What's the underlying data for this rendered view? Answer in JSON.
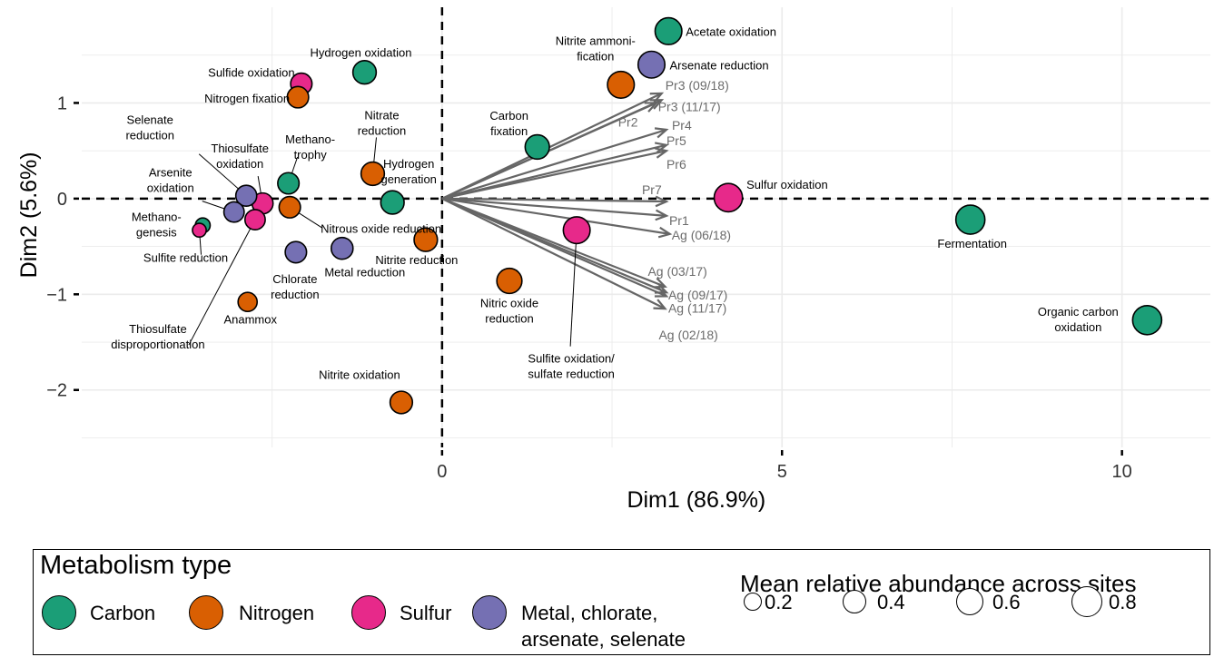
{
  "chart_data": {
    "type": "scatter",
    "xlabel": "Dim1 (86.9%)",
    "ylabel": "Dim2 (5.6%)",
    "xlim": [
      -5.3,
      11.3
    ],
    "ylim": [
      -2.6,
      2.0
    ],
    "x_ticks": [
      0,
      5,
      10
    ],
    "y_ticks": [
      -2,
      -1,
      0,
      1
    ],
    "x_tick_labels": [
      "0",
      "5",
      "10"
    ],
    "y_tick_labels": [
      "−2",
      "−1",
      "0",
      "1"
    ],
    "grid": true,
    "reference_lines": {
      "x": 0,
      "y": 0,
      "style": "dashed"
    },
    "colors": {
      "Carbon": "#1b9e77",
      "Nitrogen": "#d95f02",
      "Sulfur": "#e7298a",
      "Metal, chlorate, arsenate, selenate": "#7570b3"
    },
    "points": [
      {
        "label": "Acetate oxidation",
        "x": 3.33,
        "y": 1.75,
        "type": "Carbon",
        "abundance": 0.7
      },
      {
        "label": "Arsenate reduction",
        "x": 3.08,
        "y": 1.4,
        "type": "Metal, chlorate, arsenate, selenate",
        "abundance": 0.7
      },
      {
        "label": "Nitrite ammoni-\nfication",
        "x": 2.63,
        "y": 1.19,
        "type": "Nitrogen",
        "abundance": 0.7
      },
      {
        "label": "Carbon\nfixation",
        "x": 1.4,
        "y": 0.54,
        "type": "Carbon",
        "abundance": 0.55
      },
      {
        "label": "Sulfur oxidation",
        "x": 4.21,
        "y": 0.01,
        "type": "Sulfur",
        "abundance": 0.8
      },
      {
        "label": "Fermentation",
        "x": 7.77,
        "y": -0.22,
        "type": "Carbon",
        "abundance": 0.85
      },
      {
        "label": "Organic carbon\noxidation",
        "x": 10.37,
        "y": -1.27,
        "type": "Carbon",
        "abundance": 0.85
      },
      {
        "label": "Sulfite oxidation/\nsulfate reduction",
        "x": 1.98,
        "y": -0.33,
        "type": "Sulfur",
        "abundance": 0.7
      },
      {
        "label": "Nitric oxide\nreduction",
        "x": 0.99,
        "y": -0.86,
        "type": "Nitrogen",
        "abundance": 0.6
      },
      {
        "label": "Nitrite reduction",
        "x": -0.24,
        "y": -0.43,
        "type": "Nitrogen",
        "abundance": 0.5
      },
      {
        "label": "Hydrogen\ngeneration",
        "x": -0.73,
        "y": -0.04,
        "type": "Carbon",
        "abundance": 0.5
      },
      {
        "label": "Nitrate\nreduction",
        "x": -1.02,
        "y": 0.26,
        "type": "Nitrogen",
        "abundance": 0.5
      },
      {
        "label": "Hydrogen oxidation",
        "x": -1.14,
        "y": 1.32,
        "type": "Carbon",
        "abundance": 0.5
      },
      {
        "label": "Sulfide oxidation",
        "x": -2.07,
        "y": 1.2,
        "type": "Sulfur",
        "abundance": 0.4
      },
      {
        "label": "Nitrogen fixation",
        "x": -2.12,
        "y": 1.06,
        "type": "Nitrogen",
        "abundance": 0.4
      },
      {
        "label": "Methano-\ntrophy",
        "x": -2.26,
        "y": 0.16,
        "type": "Carbon",
        "abundance": 0.4
      },
      {
        "label": "Nitrous oxide reduction",
        "x": -2.24,
        "y": -0.09,
        "type": "Nitrogen",
        "abundance": 0.4
      },
      {
        "label": "Thiosulfate\noxidation",
        "x": -2.64,
        "y": -0.05,
        "type": "Sulfur",
        "abundance": 0.38
      },
      {
        "label": "Selenate\nreduction",
        "x": -2.88,
        "y": 0.03,
        "type": "Metal, chlorate, arsenate, selenate",
        "abundance": 0.38
      },
      {
        "label": "Arsenite\noxidation",
        "x": -3.06,
        "y": -0.14,
        "type": "Metal, chlorate, arsenate, selenate",
        "abundance": 0.35
      },
      {
        "label": "Thiosulfate\ndisproportionation",
        "x": -2.75,
        "y": -0.22,
        "type": "Sulfur",
        "abundance": 0.35
      },
      {
        "label": "Methano-\ngenesis",
        "x": -3.52,
        "y": -0.28,
        "type": "Carbon",
        "abundance": 0.15
      },
      {
        "label": "Sulfite reduction",
        "x": -3.57,
        "y": -0.33,
        "type": "Sulfur",
        "abundance": 0.12
      },
      {
        "label": "Chlorate\nreduction",
        "x": -2.15,
        "y": -0.56,
        "type": "Metal, chlorate, arsenate, selenate",
        "abundance": 0.4
      },
      {
        "label": "Metal reduction",
        "x": -1.47,
        "y": -0.52,
        "type": "Metal, chlorate, arsenate, selenate",
        "abundance": 0.42
      },
      {
        "label": "Anammox",
        "x": -2.86,
        "y": -1.08,
        "type": "Nitrogen",
        "abundance": 0.3
      },
      {
        "label": "Nitrite oxidation",
        "x": -0.6,
        "y": -2.13,
        "type": "Nitrogen",
        "abundance": 0.45
      }
    ],
    "vectors": [
      {
        "label": "Pr3 (09/18)",
        "x": 3.23,
        "y": 1.1
      },
      {
        "label": "Pr3 (11/17)",
        "x": 3.23,
        "y": 1.03
      },
      {
        "label": "Pr2",
        "x": 3.15,
        "y": 1.0
      },
      {
        "label": "Pr4",
        "x": 3.3,
        "y": 0.72
      },
      {
        "label": "Pr5",
        "x": 3.3,
        "y": 0.56
      },
      {
        "label": "Pr6",
        "x": 3.3,
        "y": 0.5
      },
      {
        "label": "Pr7",
        "x": 3.3,
        "y": -0.03
      },
      {
        "label": "Pr1",
        "x": 3.3,
        "y": -0.18
      },
      {
        "label": "Ag (06/18)",
        "x": 3.35,
        "y": -0.37
      },
      {
        "label": "Ag (03/17)",
        "x": 3.28,
        "y": -0.92
      },
      {
        "label": "Ag (09/17)",
        "x": 3.3,
        "y": -0.98
      },
      {
        "label": "Ag (11/17)",
        "x": 3.3,
        "y": -1.02
      },
      {
        "label": "Ag (02/18)",
        "x": 3.28,
        "y": -1.15
      }
    ]
  },
  "legend": {
    "type_title": "Metabolism type",
    "types": [
      {
        "label": "Carbon",
        "color": "#1b9e77"
      },
      {
        "label": "Nitrogen",
        "color": "#d95f02"
      },
      {
        "label": "Sulfur",
        "color": "#e7298a"
      },
      {
        "label": "Metal, chlorate,\narsenate, selenate",
        "color": "#7570b3"
      }
    ],
    "size_title": "Mean relative abundance across sites",
    "sizes": [
      {
        "label": "0.2",
        "value": 0.2
      },
      {
        "label": "0.4",
        "value": 0.4
      },
      {
        "label": "0.6",
        "value": 0.6
      },
      {
        "label": "0.8",
        "value": 0.8
      }
    ]
  }
}
